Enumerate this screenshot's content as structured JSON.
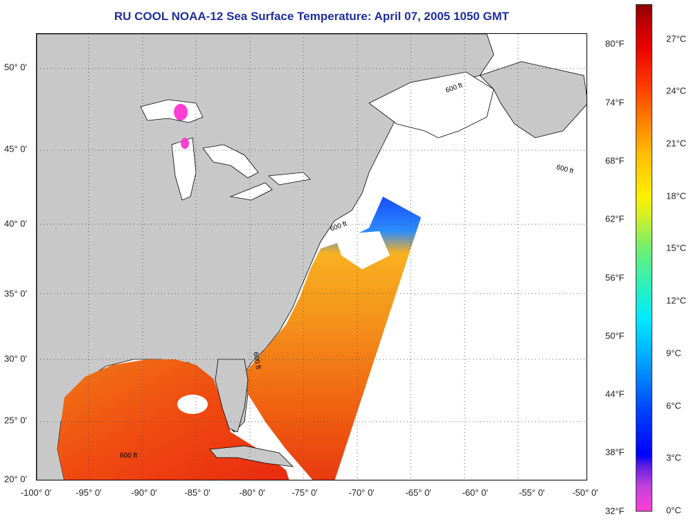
{
  "title": "RU COOL  NOAA-12  Sea Surface Temperature:  April 07, 2005 1050 GMT",
  "latitude_labels": [
    "50° 0'",
    "45° 0'",
    "40° 0'",
    "35° 0'",
    "30° 0'",
    "25° 0'",
    "20° 0'"
  ],
  "longitude_labels": [
    "-100° 0'",
    "-95° 0'",
    "-90° 0'",
    "-85° 0'",
    "-80° 0'",
    "-75° 0'",
    "-70° 0'",
    "-65° 0'",
    "-60° 0'",
    "-55° 0'",
    "-50° 0'"
  ],
  "isobath_label": "600 ft",
  "colorbar": {
    "fahrenheit_labels": [
      "80°F",
      "74°F",
      "68°F",
      "62°F",
      "56°F",
      "50°F",
      "44°F",
      "38°F",
      "32°F"
    ],
    "celsius_labels": [
      "27°C",
      "24°C",
      "21°C",
      "18°C",
      "15°C",
      "12°C",
      "9°C",
      "6°C",
      "3°C",
      "0°C"
    ]
  },
  "colors": {
    "land": "#c8c8c8",
    "no_data": "#ffffff",
    "title": "#1f2f9f",
    "warm": "#f04010",
    "cool": "#1a4cff"
  }
}
